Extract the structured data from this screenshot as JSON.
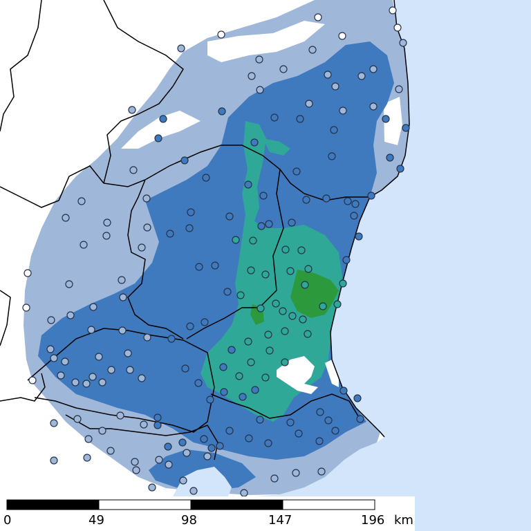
{
  "colors": {
    "sea": "#d2e5fb",
    "land": "#ffffff",
    "intensity_low": "#9fb7d8",
    "intensity_mid": "#3f79be",
    "intensity_high": "#2fa898",
    "intensity_highest": "#2c9a3c",
    "border": "#000000"
  },
  "scale_bar": {
    "ticks": [
      "0",
      "49",
      "98",
      "147",
      "196"
    ],
    "unit": "km"
  },
  "stations": {
    "count_shown": 170,
    "icon": "circle-marker-icon"
  }
}
